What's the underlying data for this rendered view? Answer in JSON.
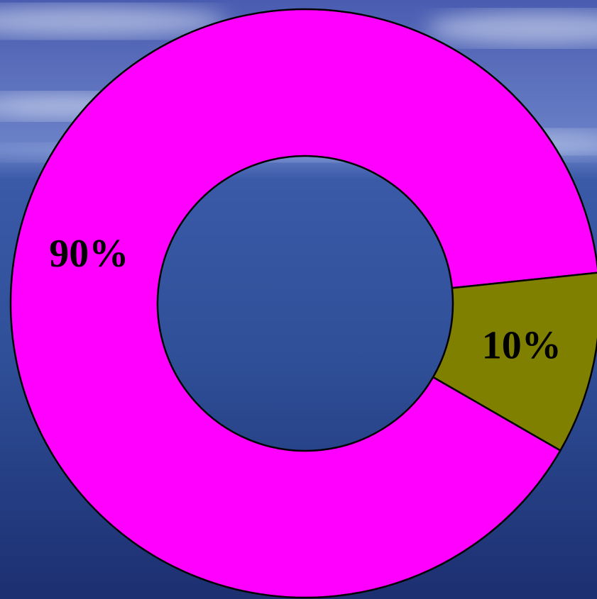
{
  "chart_data": {
    "type": "pie",
    "values": [
      90,
      10
    ],
    "value_labels": [
      "90%",
      "10%"
    ],
    "colors": [
      "#ff00ff",
      "#808000"
    ],
    "donut": true
  }
}
